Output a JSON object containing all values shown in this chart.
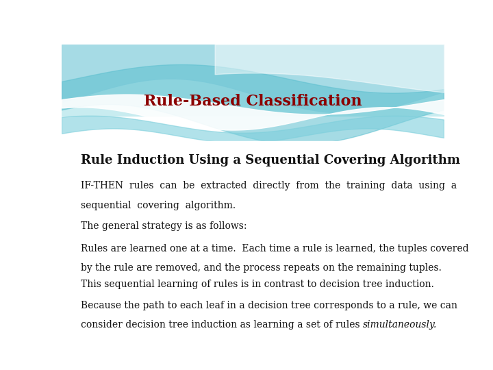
{
  "title": "Rule-Based Classification",
  "title_color": "#8B0000",
  "title_fontsize": 16,
  "subtitle": "Rule Induction Using a Sequential Covering Algorithm",
  "subtitle_fontsize": 13,
  "body_fontsize": 10,
  "background_color": "#FFFFFF",
  "para0_line1": "IF-THEN  rules  can  be  extracted  directly  from  the  training  data  using  a",
  "para0_line2": "sequential  covering  algorithm.",
  "para1": "The general strategy is as follows:",
  "para2_line1": "Rules are learned one at a time.  Each time a rule is learned, the tuples covered",
  "para2_line2": "by the rule are removed, and the process repeats on the remaining tuples.",
  "para3": "This sequential learning of rules is in contrast to decision tree induction.",
  "para4_line1": "Because the path to each leaf in a decision tree corresponds to a rule, we can",
  "para4_line2_normal": "consider decision tree induction as learning a set of rules ",
  "para4_line2_italic": "simultaneously",
  "para4_line2_end": "."
}
